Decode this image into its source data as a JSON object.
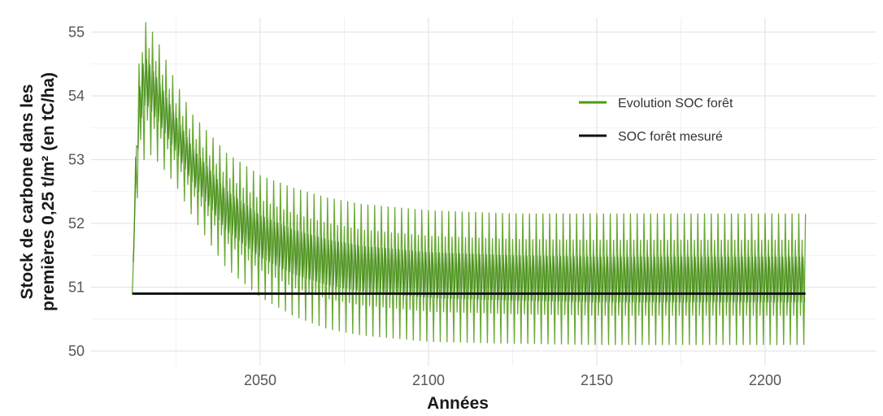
{
  "chart_data": {
    "type": "line",
    "title": "",
    "xlabel": "Années",
    "ylabel_lines": [
      "Stock de carbone dans les",
      "premières 0,25 t/m² (en tC/ha)"
    ],
    "xlim": [
      2012,
      2212
    ],
    "ylim": [
      50,
      55
    ],
    "x_ticks": [
      2050,
      2100,
      2150,
      2200
    ],
    "y_ticks": [
      50,
      51,
      52,
      53,
      54,
      55
    ],
    "grid": true,
    "legend_position": "top-right",
    "colors": {
      "forest_evolution": "#4d9a0e",
      "forest_measured": "#111111"
    },
    "series": [
      {
        "name": "Evolution SOC forêt",
        "style": "oscillating-envelope",
        "x": [
          2012,
          2013,
          2014,
          2015,
          2016,
          2017,
          2018,
          2020,
          2025,
          2030,
          2040,
          2050,
          2060,
          2070,
          2080,
          2090,
          2100,
          2125,
          2150,
          2175,
          2200,
          2212
        ],
        "y_upper": [
          50.9,
          53.2,
          54.5,
          55.0,
          55.15,
          55.1,
          55.0,
          54.8,
          54.2,
          53.7,
          53.1,
          52.75,
          52.55,
          52.4,
          52.3,
          52.25,
          52.2,
          52.15,
          52.15,
          52.15,
          52.15,
          52.15
        ],
        "y_lower": [
          50.8,
          52.2,
          52.6,
          52.9,
          53.1,
          53.1,
          53.05,
          52.95,
          52.6,
          52.1,
          51.3,
          50.85,
          50.55,
          50.35,
          50.25,
          50.2,
          50.15,
          50.12,
          50.1,
          50.1,
          50.1,
          50.1
        ],
        "y_mean": [
          50.85,
          52.8,
          53.8,
          54.2,
          54.3,
          54.2,
          54.1,
          53.9,
          53.4,
          52.9,
          52.2,
          51.8,
          51.55,
          51.4,
          51.3,
          51.25,
          51.2,
          51.15,
          51.12,
          51.12,
          51.12,
          51.12
        ]
      },
      {
        "name": "SOC forêt mesuré",
        "style": "line",
        "x": [
          2012,
          2212
        ],
        "y": [
          50.9,
          50.9
        ]
      }
    ]
  }
}
